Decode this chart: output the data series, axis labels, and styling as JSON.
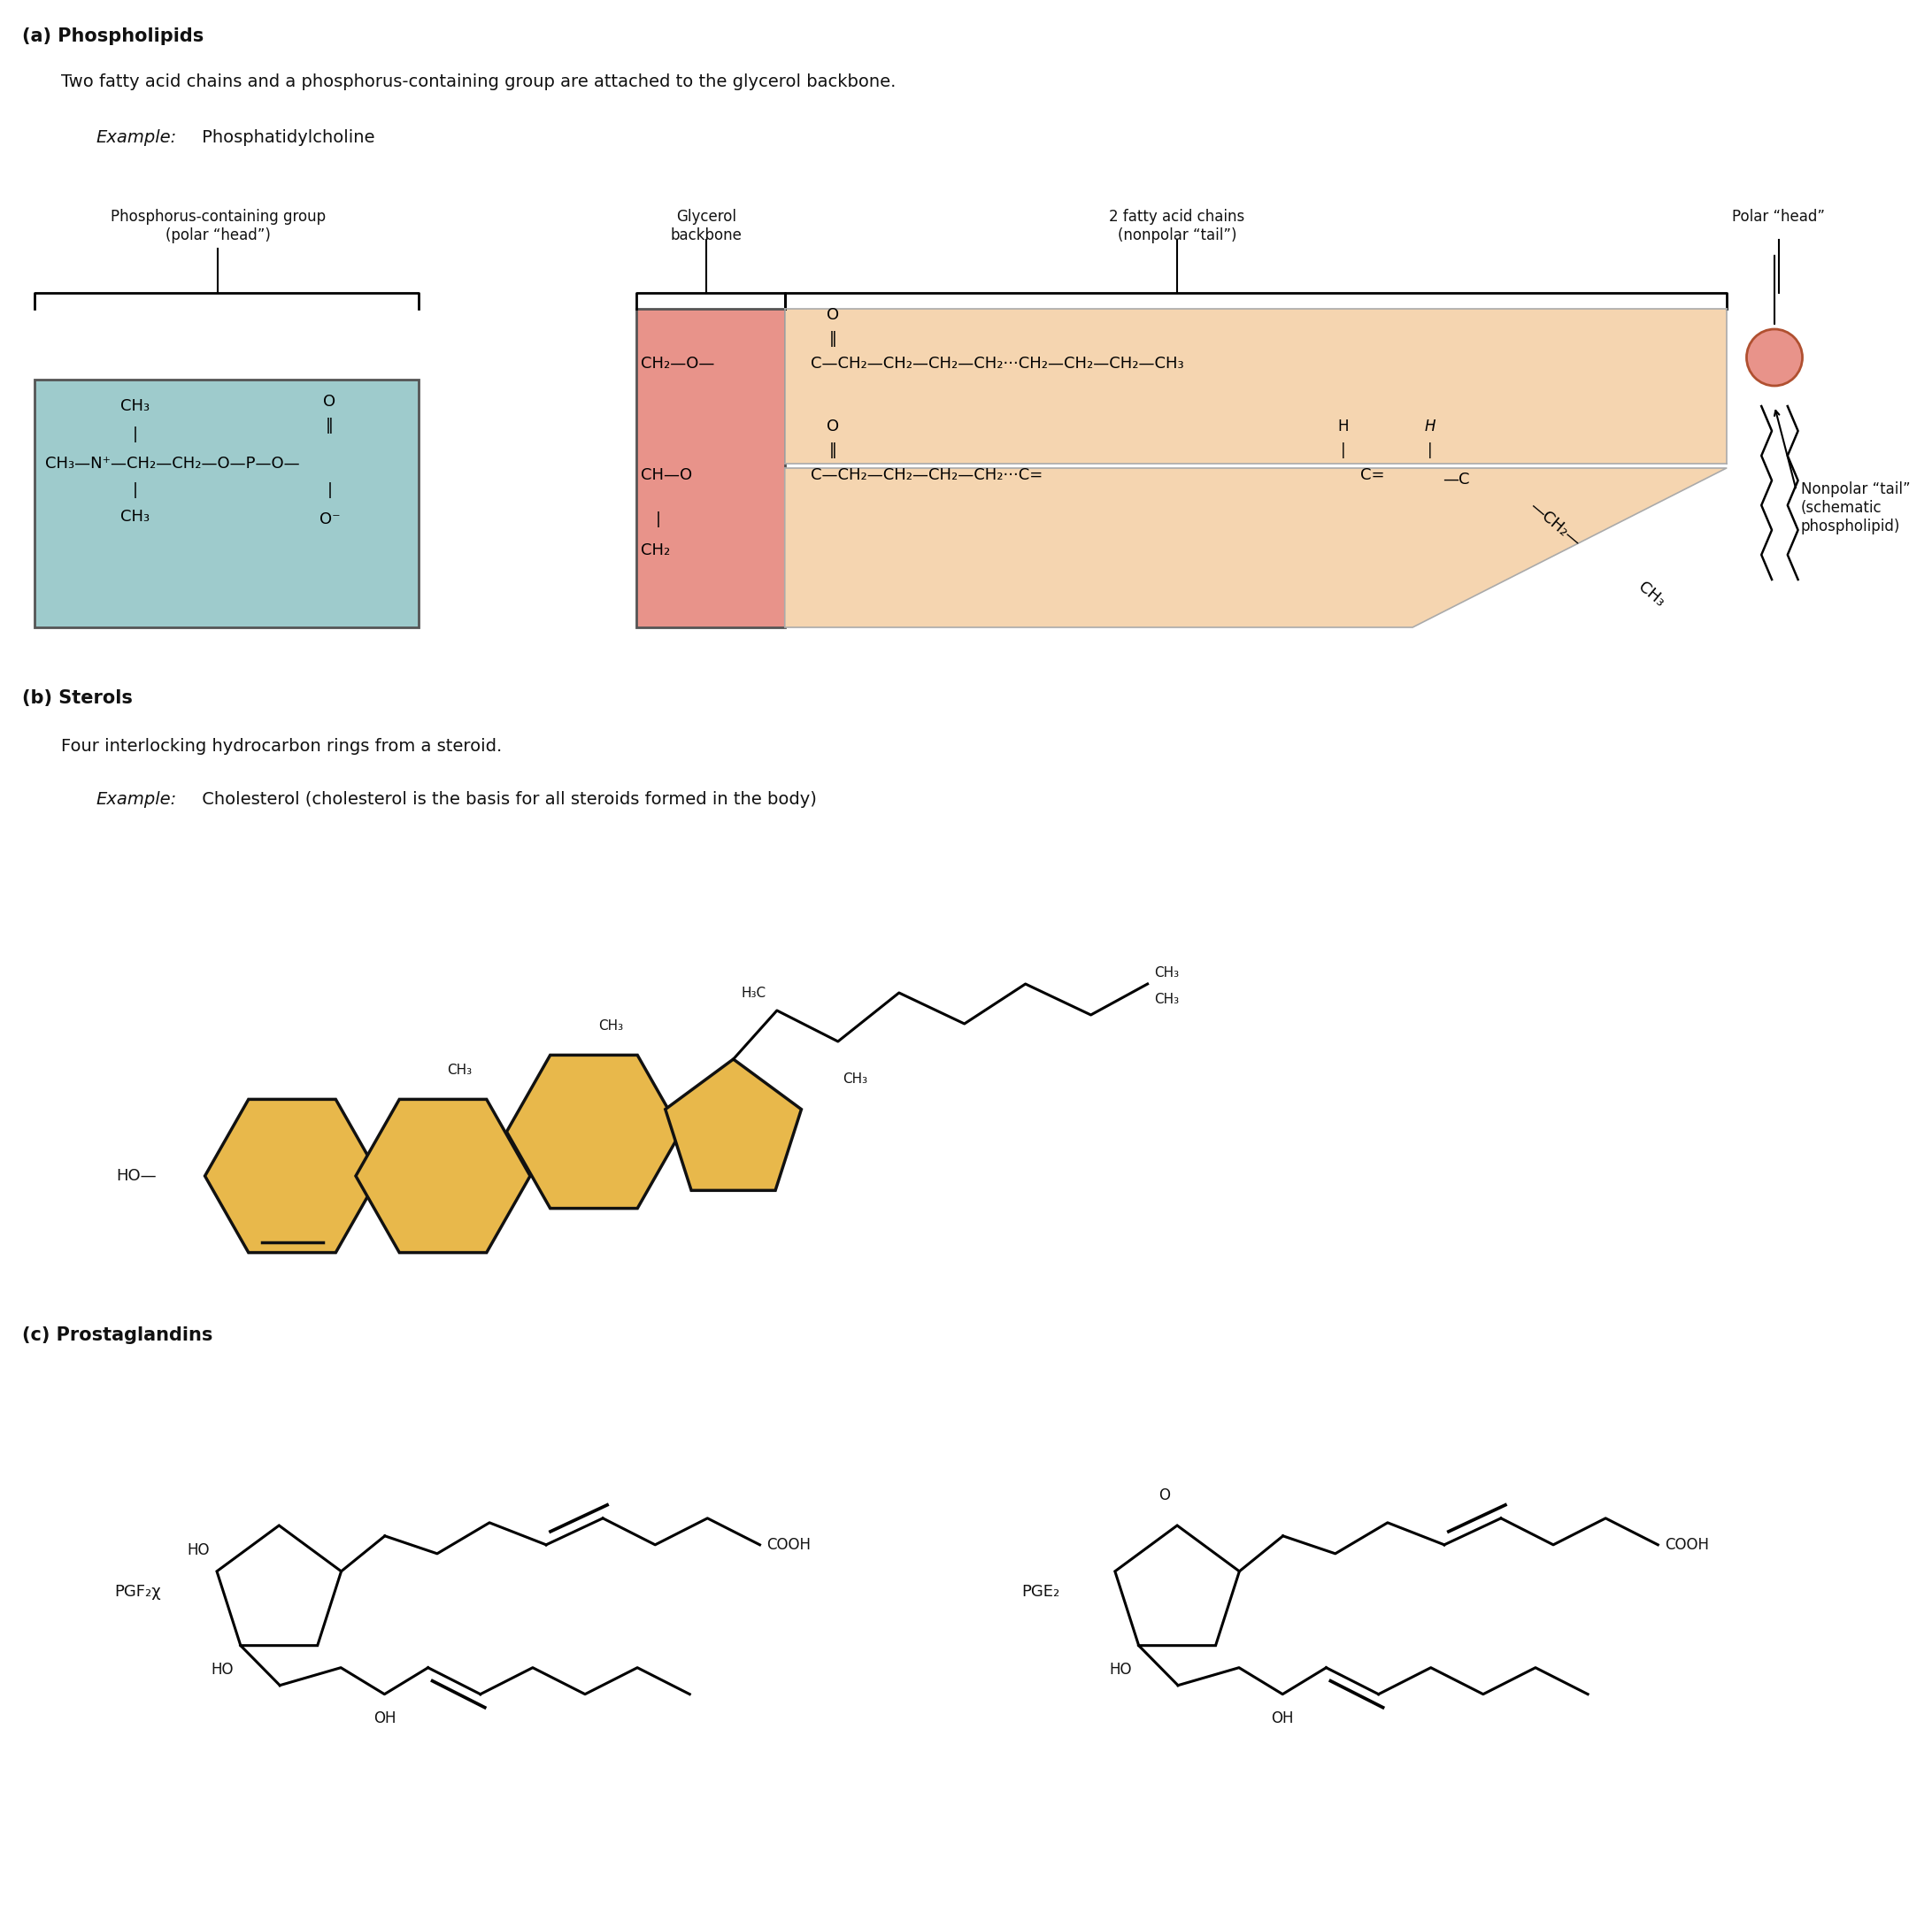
{
  "bg_color": "#ffffff",
  "section_a_label": "(a) Phospholipids",
  "section_a_desc": "Two fatty acid chains and a phosphorus-containing group are attached to the glycerol backbone.",
  "section_a_example_italic": "Example:",
  "section_a_example_normal": " Phosphatidylcholine",
  "section_b_label": "(b) Sterols",
  "section_b_desc": "Four interlocking hydrocarbon rings from a steroid.",
  "section_b_example_italic": "Example:",
  "section_b_example_normal": " Cholesterol (cholesterol is the basis for all steroids formed in the body)",
  "section_c_label": "(c) Prostaglandins",
  "phospho_bg": "#9ecbcc",
  "glycerol_bg": "#e8938a",
  "fatty_acid_bg": "#f5d5b0",
  "sterol_fill": "#e8b84b",
  "sterol_edge": "#111111",
  "text_color": "#111111"
}
